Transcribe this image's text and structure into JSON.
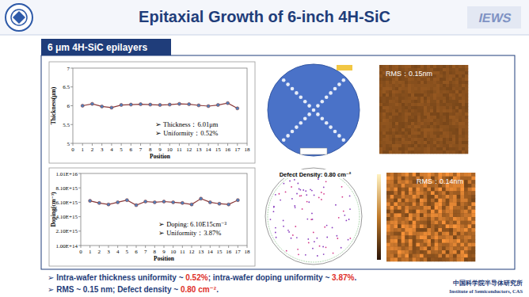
{
  "slide": {
    "title": "Epitaxial Growth of 6-inch 4H-SiC",
    "logo_text": "IEWS",
    "section": "6 μm 4H-SiC epilayers",
    "defect_map_label": "Defect Density: 0.80 cm⁻²",
    "afm_labels": [
      "RMS：0.15nm",
      "RMS：0.14nm"
    ],
    "bullet_symbol": "➢",
    "bullets": [
      [
        "Intra-wafer thickness uniformity ~ ",
        "0.52%",
        "; intra-wafer doping uniformity ~ ",
        "3.87%",
        "."
      ],
      [
        "RMS ~ 0.15 nm; Defect density ~ ",
        "0.80 cm⁻²",
        "."
      ]
    ],
    "institute": [
      "中国科学院半导体研究所",
      "Institute of Semiconductors, CAS"
    ]
  },
  "chart_data": [
    {
      "type": "line",
      "x_label": "Position",
      "y_label": "Thickness(μm)",
      "x": [
        1,
        2,
        3,
        4,
        5,
        6,
        7,
        8,
        9,
        10,
        11,
        12,
        13,
        14,
        15,
        16,
        17
      ],
      "values": [
        6.0,
        6.05,
        5.98,
        5.95,
        6.02,
        6.03,
        6.04,
        6.03,
        6.02,
        6.03,
        6.05,
        6.04,
        6.01,
        5.99,
        6.02,
        6.07,
        5.93
      ],
      "color": "#8b3a3a",
      "marker": "circle",
      "xlim": [
        0,
        18
      ],
      "xticks": [
        0,
        1,
        2,
        3,
        4,
        5,
        6,
        7,
        8,
        9,
        10,
        11,
        12,
        13,
        14,
        15,
        16,
        17,
        18
      ],
      "ylim": [
        5,
        7
      ],
      "yticks": [
        5,
        5.5,
        6,
        6.5,
        7
      ],
      "grid": false,
      "annotations": [
        "➢ Thickness：6.01μm",
        "➢ Uniformity：0.52%"
      ]
    },
    {
      "type": "line",
      "x_label": "Position",
      "y_label": "Doping(cm⁻³)",
      "x": [
        1,
        2,
        3,
        4,
        5,
        6,
        7,
        8,
        9,
        10,
        11,
        12,
        13,
        14,
        15,
        16,
        17
      ],
      "values": [
        6300000000000000.0,
        6000000000000000.0,
        5800000000000000.0,
        6100000000000000.0,
        6400000000000000.0,
        5700000000000000.0,
        6200000000000000.0,
        6100000000000000.0,
        6200000000000000.0,
        6100000000000000.0,
        6000000000000000.0,
        5800000000000000.0,
        6600000000000000.0,
        6100000000000000.0,
        5900000000000000.0,
        5800000000000000.0,
        6400000000000000.0
      ],
      "color": "#8b3a3a",
      "marker": "circle",
      "xlim": [
        0,
        18
      ],
      "xticks": [
        0,
        1,
        2,
        3,
        4,
        5,
        6,
        7,
        8,
        9,
        10,
        11,
        12,
        13,
        14,
        15,
        16,
        17,
        18
      ],
      "ylim": [
        100000000000000.0,
        1.01e+16
      ],
      "yticks": [
        {
          "value": 100000000000000.0,
          "label": "1.00E+14"
        },
        {
          "value": 2100000000000000.0,
          "label": "2.10E+15"
        },
        {
          "value": 4100000000000000.0,
          "label": "4.10E+15"
        },
        {
          "value": 6100000000000000.0,
          "label": "6.10E+15"
        },
        {
          "value": 8100000000000000.0,
          "label": "8.10E+15"
        },
        {
          "value": 1.01e+16,
          "label": "1.01E+16"
        }
      ],
      "grid": false,
      "annotations": [
        "➢ Doping: 6.10E15cm⁻³",
        "➢ Uniformity：3.87%"
      ]
    }
  ]
}
